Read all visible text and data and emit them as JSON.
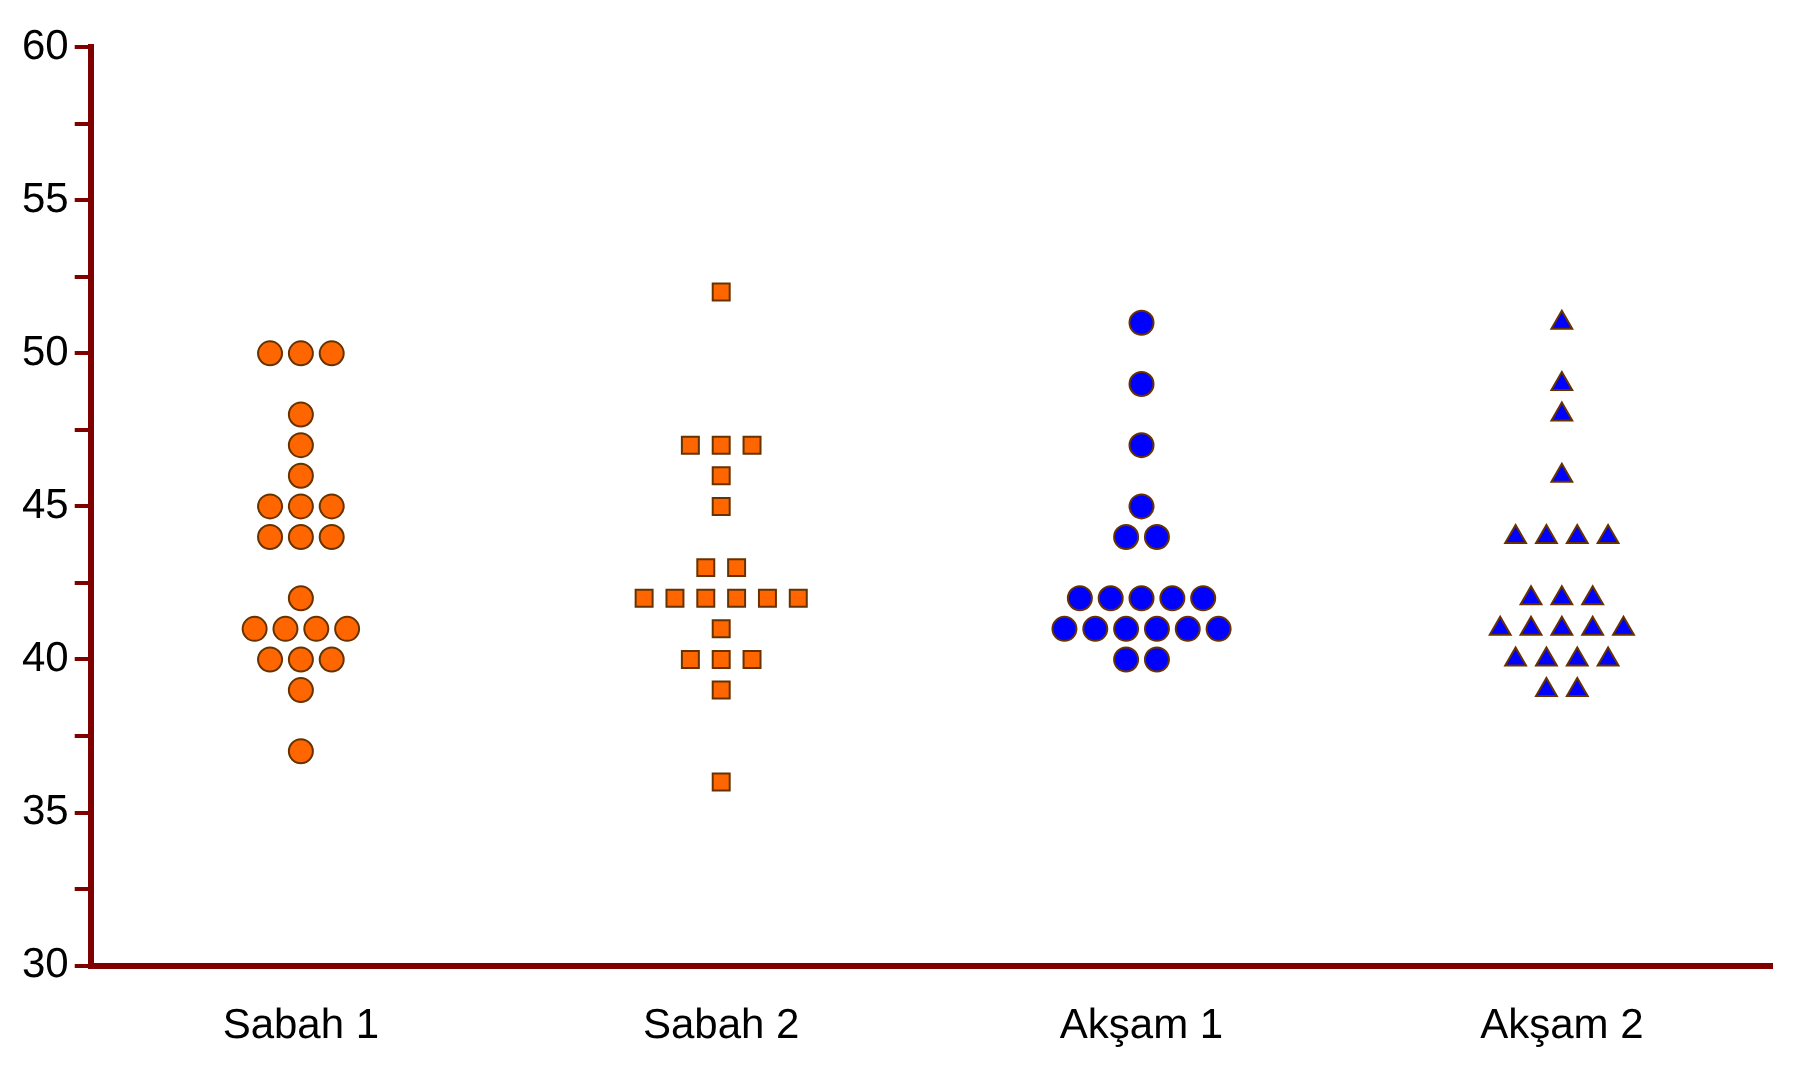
{
  "chart_data": {
    "type": "scatter",
    "categories": [
      "Sabah 1",
      "Sabah 2",
      "Akşam 1",
      "Akşam 2"
    ],
    "series": [
      {
        "color": "#ff6600",
        "marker": "circle",
        "x": [
          "Sabah 1",
          "Sabah 1",
          "Sabah 1",
          "Sabah 1",
          "Sabah 1",
          "Sabah 1",
          "Sabah 1",
          "Sabah 1",
          "Sabah 1",
          "Sabah 1",
          "Sabah 1",
          "Sabah 1",
          "Sabah 1",
          "Sabah 1",
          "Sabah 1",
          "Sabah 1",
          "Sabah 1",
          "Sabah 1",
          "Sabah 1",
          "Sabah 1",
          "Sabah 1",
          "Sabah 1"
        ],
        "values": [
          50,
          50,
          50,
          48,
          47,
          46,
          45,
          45,
          45,
          44,
          44,
          44,
          42,
          41,
          41,
          41,
          41,
          40,
          40,
          40,
          39,
          37
        ]
      },
      {
        "color": "#ff6600",
        "marker": "square",
        "x": [
          "Sabah 2",
          "Sabah 2",
          "Sabah 2",
          "Sabah 2",
          "Sabah 2",
          "Sabah 2",
          "Sabah 2",
          "Sabah 2",
          "Sabah 2",
          "Sabah 2",
          "Sabah 2",
          "Sabah 2",
          "Sabah 2",
          "Sabah 2",
          "Sabah 2",
          "Sabah 2",
          "Sabah 2",
          "Sabah 2",
          "Sabah 2",
          "Sabah 2"
        ],
        "values": [
          52,
          47,
          47,
          47,
          46,
          45,
          43,
          43,
          42,
          42,
          42,
          42,
          42,
          42,
          41,
          40,
          40,
          40,
          39,
          36
        ]
      },
      {
        "color": "#0000ff",
        "marker": "circle",
        "x": [
          "Akşam 1",
          "Akşam 1",
          "Akşam 1",
          "Akşam 1",
          "Akşam 1",
          "Akşam 1",
          "Akşam 1",
          "Akşam 1",
          "Akşam 1",
          "Akşam 1",
          "Akşam 1",
          "Akşam 1",
          "Akşam 1",
          "Akşam 1",
          "Akşam 1",
          "Akşam 1",
          "Akşam 1",
          "Akşam 1",
          "Akşam 1"
        ],
        "values": [
          51,
          49,
          47,
          45,
          44,
          44,
          42,
          42,
          42,
          42,
          42,
          41,
          41,
          41,
          41,
          41,
          41,
          40,
          40
        ]
      },
      {
        "color": "#0000ff",
        "marker": "triangle",
        "x": [
          "Akşam 2",
          "Akşam 2",
          "Akşam 2",
          "Akşam 2",
          "Akşam 2",
          "Akşam 2",
          "Akşam 2",
          "Akşam 2",
          "Akşam 2",
          "Akşam 2",
          "Akşam 2",
          "Akşam 2",
          "Akşam 2",
          "Akşam 2",
          "Akşam 2",
          "Akşam 2",
          "Akşam 2",
          "Akşam 2",
          "Akşam 2",
          "Akşam 2",
          "Akşam 2",
          "Akşam 2"
        ],
        "values": [
          51,
          49,
          48,
          46,
          44,
          44,
          44,
          44,
          42,
          42,
          42,
          41,
          41,
          41,
          41,
          41,
          40,
          40,
          40,
          40,
          39,
          39
        ]
      }
    ],
    "ylim": [
      30,
      60
    ],
    "yticks": [
      30,
      {
        "value": 32.5,
        "label": null
      },
      35,
      {
        "value": 37.5,
        "label": null
      },
      40,
      {
        "value": 42.5,
        "label": null
      },
      45,
      {
        "value": 47.5,
        "label": null
      },
      50,
      {
        "value": 52.5,
        "label": null
      },
      55,
      {
        "value": 57.5,
        "label": null
      },
      60
    ],
    "grid": false,
    "legend": false
  }
}
